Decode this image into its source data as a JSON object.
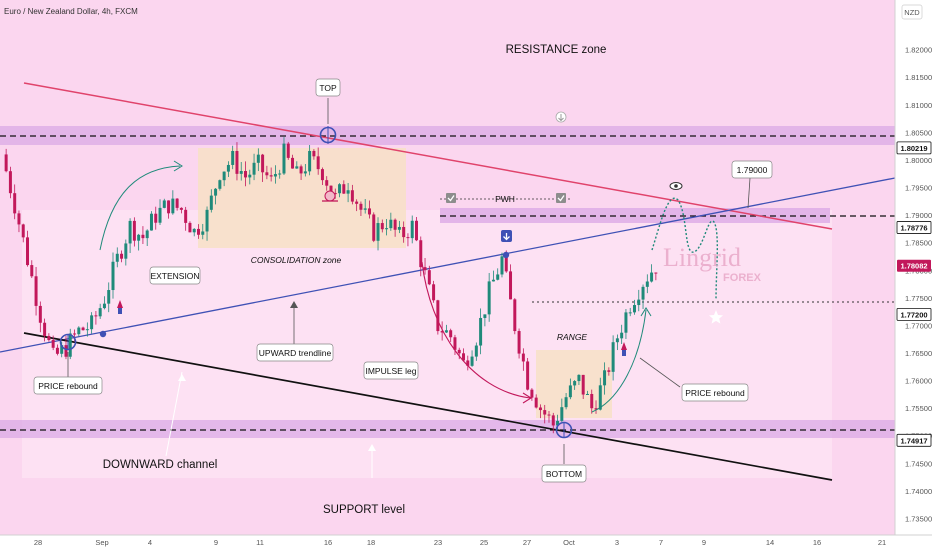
{
  "header": {
    "symbol_title": "Euro / New Zealand Dollar, 4h, FXCM",
    "currency_badge": "NZD"
  },
  "watermark": {
    "main": "Lingrid",
    "sub": "FOREX"
  },
  "colors": {
    "background_pink": "#fbd6ef",
    "band_purple": "#d9a6e6",
    "up_candle": "#1f8a7a",
    "down_candle": "#c2185b",
    "resistance_line": "#e0436b",
    "upward_trendline": "#3f51b5",
    "support_line": "#111111",
    "consolidation_box": "#f7e1c6",
    "current_price_tag": "#c2185b"
  },
  "annotations": {
    "resistance_zone": "RESISTANCE zone",
    "top": "TOP",
    "extension": "EXTENSION",
    "consolidation": "CONSOLIDATION zone",
    "pwh": "PWH",
    "price_rebound_left": "PRICE rebound",
    "upward_trendline": "UPWARD trendline",
    "impulse_leg": "IMPULSE leg",
    "range": "RANGE",
    "price_rebound_right": "PRICE rebound",
    "downward_channel": "DOWNWARD channel",
    "support_level": "SUPPORT level",
    "bottom": "BOTTOM",
    "target_box": "1.79000"
  },
  "chart_data": {
    "type": "candlestick",
    "title": "Euro / New Zealand Dollar, 4h, FXCM",
    "y_axis": {
      "ticks": [
        "1.82000",
        "1.81500",
        "1.81000",
        "1.80500",
        "1.80000",
        "1.79500",
        "1.79000",
        "1.78500",
        "1.78000",
        "1.77500",
        "1.77000",
        "1.76500",
        "1.76000",
        "1.75500",
        "1.75000",
        "1.74500",
        "1.74000",
        "1.73500"
      ],
      "range": [
        1.732,
        1.829
      ]
    },
    "x_axis": {
      "ticks": [
        "28",
        "Sep",
        "4",
        "9",
        "11",
        "16",
        "18",
        "23",
        "25",
        "27",
        "Oct",
        "3",
        "7",
        "9",
        "14",
        "16",
        "21"
      ]
    },
    "price_tags": [
      {
        "value": "1.80219",
        "style": "level"
      },
      {
        "value": "1.78776",
        "style": "level"
      },
      {
        "value": "1.78082",
        "style": "current"
      },
      {
        "value": "1.77200",
        "style": "level"
      },
      {
        "value": "1.74917",
        "style": "level"
      }
    ],
    "horizontal_levels": [
      1.80219,
      1.78776,
      1.772,
      1.74917
    ],
    "close_path": [
      1.801,
      1.792,
      1.782,
      1.772,
      1.764,
      1.766,
      1.769,
      1.77,
      1.775,
      1.782,
      1.788,
      1.786,
      1.79,
      1.792,
      1.791,
      1.787,
      1.79,
      1.798,
      1.8,
      1.797,
      1.799,
      1.796,
      1.801,
      1.797,
      1.8,
      1.798,
      1.793,
      1.796,
      1.791,
      1.787,
      1.789,
      1.786,
      1.788,
      1.779,
      1.77,
      1.768,
      1.763,
      1.768,
      1.776,
      1.782,
      1.77,
      1.76,
      1.755,
      1.752,
      1.757,
      1.76,
      1.755,
      1.76,
      1.768,
      1.774,
      1.778,
      1.781
    ]
  }
}
